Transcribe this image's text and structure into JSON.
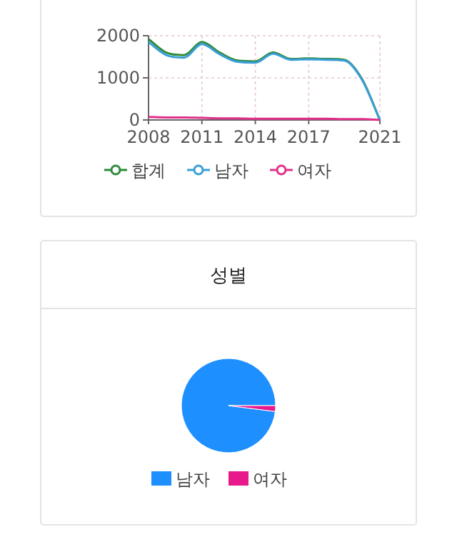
{
  "chart_data": [
    {
      "type": "line",
      "x": [
        2008,
        2009,
        2010,
        2011,
        2012,
        2013,
        2014,
        2015,
        2016,
        2017,
        2018,
        2019,
        2020,
        2021
      ],
      "xlim": [
        2008,
        2021
      ],
      "xticks": [
        2008,
        2011,
        2014,
        2017,
        2021
      ],
      "ylim": [
        0,
        2000
      ],
      "yticks": [
        0,
        1000,
        2000
      ],
      "grid": true,
      "legend": "bottom",
      "series": [
        {
          "name": "합계",
          "color": "#2e8b3a",
          "values": [
            1920,
            1600,
            1540,
            1850,
            1600,
            1410,
            1390,
            1600,
            1450,
            1460,
            1450,
            1430,
            970,
            0
          ]
        },
        {
          "name": "남자",
          "color": "#3a9fd8",
          "values": [
            1850,
            1540,
            1480,
            1800,
            1560,
            1380,
            1360,
            1570,
            1430,
            1440,
            1430,
            1410,
            950,
            0
          ]
        },
        {
          "name": "여자",
          "color": "#e0308a",
          "values": [
            70,
            60,
            60,
            50,
            40,
            40,
            30,
            30,
            30,
            30,
            30,
            20,
            20,
            0
          ]
        }
      ]
    },
    {
      "type": "pie",
      "title": "성별",
      "categories": [
        "남자",
        "여자"
      ],
      "values": [
        98,
        2
      ],
      "colors": [
        "#1e8fff",
        "#e8198b"
      ],
      "legend": "bottom"
    }
  ]
}
